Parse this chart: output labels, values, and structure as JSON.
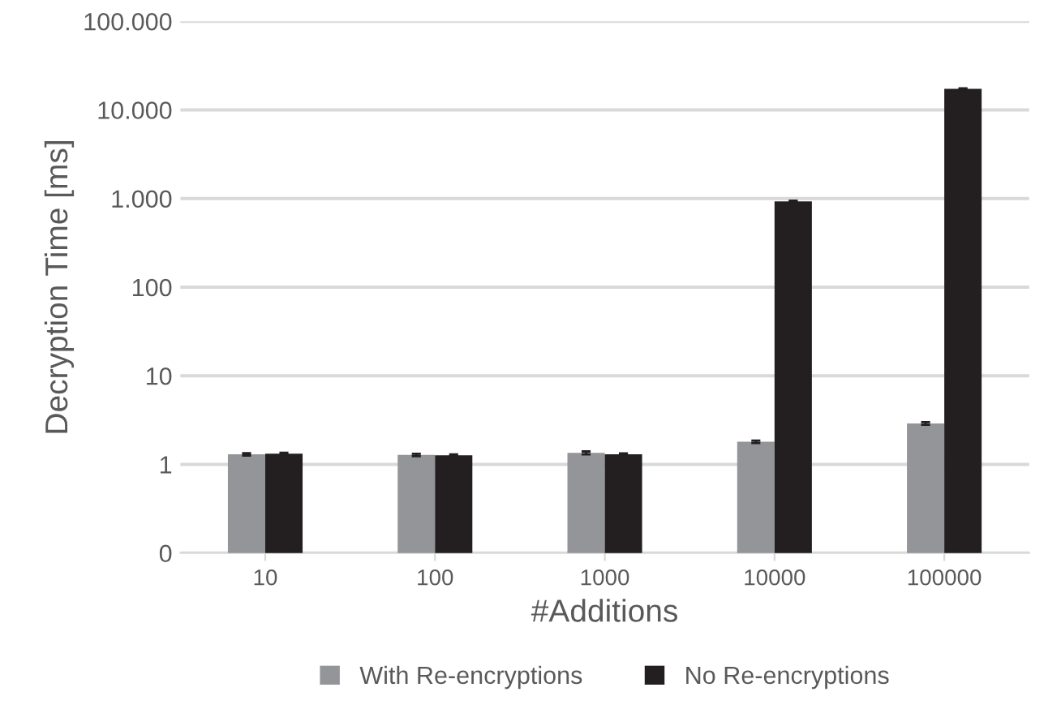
{
  "chart_data": {
    "type": "bar",
    "xlabel": "#Additions",
    "ylabel": "Decryption Time [ms]",
    "categories": [
      "10",
      "100",
      "1000",
      "10000",
      "100000"
    ],
    "series": [
      {
        "name": "With Re-encryptions",
        "color": "#939598",
        "values": [
          1.3,
          1.28,
          1.35,
          1.8,
          2.9
        ],
        "errors": [
          0.04,
          0.04,
          0.05,
          0.06,
          0.1
        ]
      },
      {
        "name": "No Re-encryptions",
        "color": "#231f20",
        "values": [
          1.32,
          1.27,
          1.3,
          930,
          17300
        ],
        "errors": [
          0.03,
          0.03,
          0.03,
          15,
          200
        ]
      }
    ],
    "log": "y",
    "ylim": [
      0.1,
      100000
    ],
    "yticks": [
      {
        "value": 0.1,
        "label": "0"
      },
      1,
      10,
      100,
      {
        "value": 1000,
        "label": "1.000"
      },
      {
        "value": 10000,
        "label": "10.000"
      },
      {
        "value": 100000,
        "label": "100.000"
      }
    ],
    "grid": "y",
    "legend": "bottom"
  }
}
